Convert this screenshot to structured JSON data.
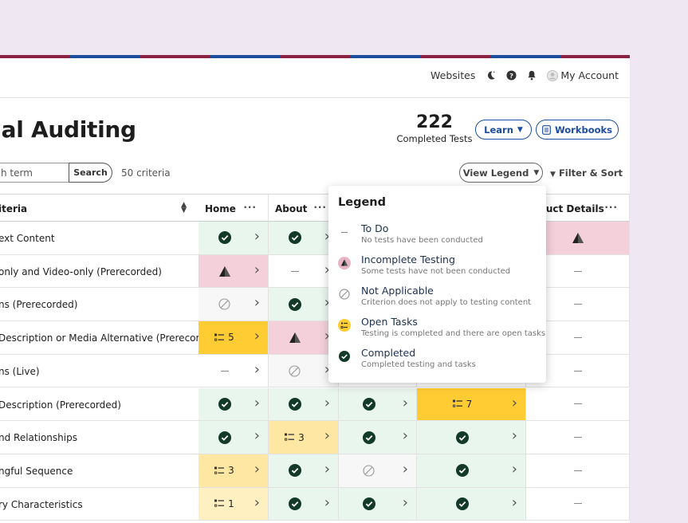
{
  "stripe_colors": [
    "#8c2144",
    "#1c4da1",
    "#8c2144",
    "#1c4da1",
    "#8c2144",
    "#1c4da1",
    "#8c2144",
    "#1c4da1",
    "#8c2144"
  ],
  "topnav": {
    "websites": "Websites",
    "account": "My Account",
    "icons": [
      "moon-icon",
      "help-icon",
      "bell-icon",
      "avatar-icon"
    ]
  },
  "page": {
    "title": "ual Auditing"
  },
  "stats": {
    "count": "222",
    "label": "Completed Tests"
  },
  "buttons": {
    "learn": "Learn",
    "workbooks": "Workbooks",
    "view_legend": "View Legend",
    "filter_sort": "Filter & Sort"
  },
  "search": {
    "placeholder": "h term",
    "button": "Search",
    "criteria_count": "50 criteria"
  },
  "table": {
    "headers": [
      "iteria",
      "Home",
      "About",
      "",
      "",
      "oduct Details"
    ],
    "rows": [
      {
        "name": "ext Content",
        "cells": [
          "done",
          "done",
          "",
          "",
          "inc"
        ]
      },
      {
        "name": "only and Video-only (Prerecorded)",
        "cells": [
          "inc",
          "todo",
          "",
          "",
          "todo"
        ]
      },
      {
        "name": "ns (Prerecorded)",
        "cells": [
          "na",
          "done",
          "",
          "",
          "todo"
        ]
      },
      {
        "name": "Description or Media Alternative (Prerecor...",
        "cells": [
          "task:5",
          "inc",
          "",
          "",
          "todo"
        ]
      },
      {
        "name": "ns (Live)",
        "cells": [
          "todo",
          "na",
          "",
          "",
          "todo"
        ]
      },
      {
        "name": "Description (Prerecorded)",
        "cells": [
          "done",
          "done",
          "done",
          "task:7",
          "todo"
        ]
      },
      {
        "name": "nd Relationships",
        "cells": [
          "done",
          "tasklt:3",
          "done",
          "done",
          "todo"
        ]
      },
      {
        "name": "ngful Sequence",
        "cells": [
          "tasklt:3",
          "done",
          "na",
          "done",
          "todo"
        ]
      },
      {
        "name": "ry Characteristics",
        "cells": [
          "task2:1",
          "done",
          "done",
          "done",
          "todo"
        ]
      }
    ]
  },
  "legend": {
    "title": "Legend",
    "items": [
      {
        "name": "To Do",
        "desc": "No tests have been conducted",
        "icon": "dash-icon"
      },
      {
        "name": "Incomplete Testing",
        "desc": "Some tests have not been conducted",
        "icon": "incomplete-icon"
      },
      {
        "name": "Not Applicable",
        "desc": "Criterion does not apply to testing content",
        "icon": "not-applicable-icon"
      },
      {
        "name": "Open Tasks",
        "desc": "Testing is completed and there are open tasks",
        "icon": "tasks-icon"
      },
      {
        "name": "Completed",
        "desc": "Completed testing and tasks",
        "icon": "check-circle-icon"
      }
    ]
  }
}
